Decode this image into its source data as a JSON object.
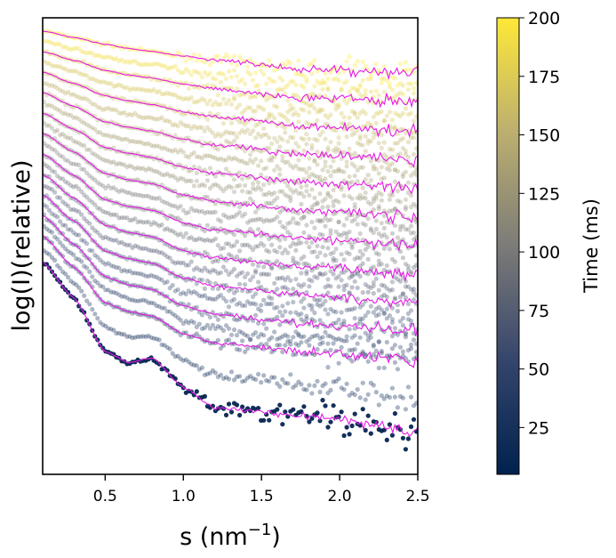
{
  "chart_data": {
    "type": "scatter",
    "title": "",
    "xlabel": "s (nm",
    "xlabel_sup": "−1",
    "xlabel_close": ")",
    "ylabel": "log(I)(relative)",
    "xlim": [
      0.1,
      2.5
    ],
    "ylim": [
      0,
      100
    ],
    "xticks": [
      0.5,
      1.0,
      1.5,
      2.0,
      2.5
    ],
    "xtick_labels": [
      "0.5",
      "1.0",
      "1.5",
      "2.0",
      "2.5"
    ],
    "yticks": [],
    "grid": false,
    "fit_color": "#e619e6",
    "s_grid": [
      0.1,
      0.3,
      0.5,
      0.65,
      0.8,
      1.0,
      1.2,
      1.75,
      2.5
    ],
    "series": [
      {
        "time_ms": 10,
        "values": [
          46.4,
          38.6,
          26.9,
          24.5,
          25.5,
          19.1,
          14.5,
          13.0,
          9.4
        ]
      },
      {
        "time_ms": 27,
        "values": [
          52.2,
          45.4,
          37.6,
          35.7,
          34.7,
          30.8,
          28.8,
          26.9,
          24.9
        ]
      },
      {
        "time_ms": 44,
        "values": [
          56.7,
          50.4,
          43.3,
          41.5,
          40.5,
          36.9,
          35.0,
          33.1,
          31.2
        ]
      },
      {
        "time_ms": 61,
        "values": [
          61.2,
          55.5,
          48.9,
          47.2,
          46.3,
          43.0,
          41.2,
          39.3,
          37.5
        ]
      },
      {
        "time_ms": 78,
        "values": [
          65.7,
          60.5,
          54.6,
          53.0,
          52.1,
          49.0,
          47.4,
          45.5,
          43.8
        ]
      },
      {
        "time_ms": 95,
        "values": [
          70.2,
          65.5,
          60.2,
          58.7,
          57.9,
          55.1,
          53.6,
          51.7,
          50.1
        ]
      },
      {
        "time_ms": 112,
        "values": [
          74.7,
          70.6,
          65.9,
          64.5,
          63.7,
          61.2,
          59.8,
          57.9,
          56.4
        ]
      },
      {
        "time_ms": 129,
        "values": [
          79.1,
          75.6,
          71.6,
          70.3,
          69.4,
          67.3,
          65.9,
          64.0,
          62.7
        ]
      },
      {
        "time_ms": 146,
        "values": [
          83.6,
          80.6,
          77.2,
          76.0,
          75.2,
          73.4,
          72.1,
          70.2,
          69.0
        ]
      },
      {
        "time_ms": 163,
        "values": [
          88.1,
          85.6,
          82.9,
          81.8,
          81.0,
          79.4,
          78.3,
          76.4,
          75.3
        ]
      },
      {
        "time_ms": 180,
        "values": [
          92.6,
          90.7,
          88.5,
          87.5,
          86.8,
          85.5,
          84.4,
          82.6,
          81.6
        ]
      },
      {
        "time_ms": 200,
        "values": [
          97.1,
          95.7,
          94.2,
          93.3,
          92.6,
          91.6,
          90.7,
          88.8,
          87.9
        ]
      }
    ],
    "colorbar": {
      "label": "Time (ms)",
      "range": [
        5,
        200
      ],
      "ticks": [
        25,
        50,
        75,
        100,
        125,
        150,
        175,
        200
      ],
      "tick_labels": [
        "25",
        "50",
        "75",
        "100",
        "125",
        "150",
        "175",
        "200"
      ],
      "colormap": "cividis",
      "stops": [
        "#00224e",
        "#35456c",
        "#7c7b78",
        "#bcaf6f",
        "#fee838"
      ]
    }
  }
}
